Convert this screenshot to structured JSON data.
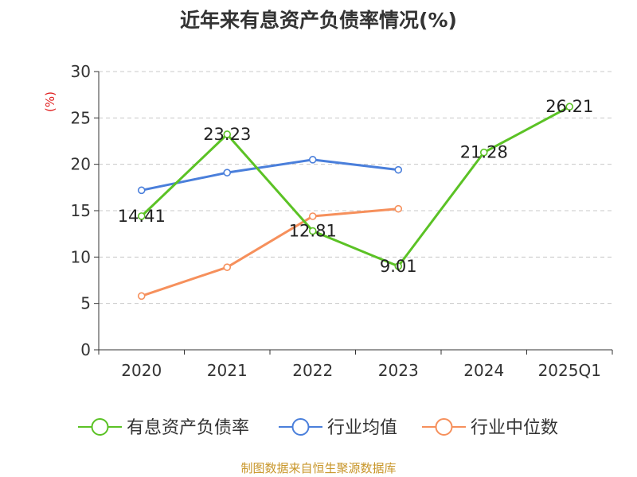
{
  "title": "近年来有息资产负债率情况(%)",
  "footer": "制图数据来自恒生聚源数据库",
  "chart_data": {
    "type": "line",
    "title": "近年来有息资产负债率情况(%)",
    "ylabel": "(%)",
    "xlabel": "",
    "categories": [
      "2020",
      "2021",
      "2022",
      "2023",
      "2024",
      "2025Q1"
    ],
    "ylim": [
      0,
      30
    ],
    "yticks": [
      0,
      5,
      10,
      15,
      20,
      25,
      30
    ],
    "grid": "horizontal-dashed",
    "legend_position": "bottom",
    "series": [
      {
        "name": "有息资产负债率",
        "color": "#5bc225",
        "values": [
          14.41,
          23.23,
          12.81,
          9.01,
          21.28,
          26.21
        ],
        "labels": [
          "14.41",
          "23.23",
          "12.81",
          "9.01",
          "21.28",
          "26.21"
        ]
      },
      {
        "name": "行业均值",
        "color": "#4a7fdb",
        "values": [
          17.2,
          19.1,
          20.5,
          19.4,
          null,
          null
        ]
      },
      {
        "name": "行业中位数",
        "color": "#f6905c",
        "values": [
          5.8,
          8.9,
          14.4,
          15.2,
          null,
          null
        ]
      }
    ]
  }
}
